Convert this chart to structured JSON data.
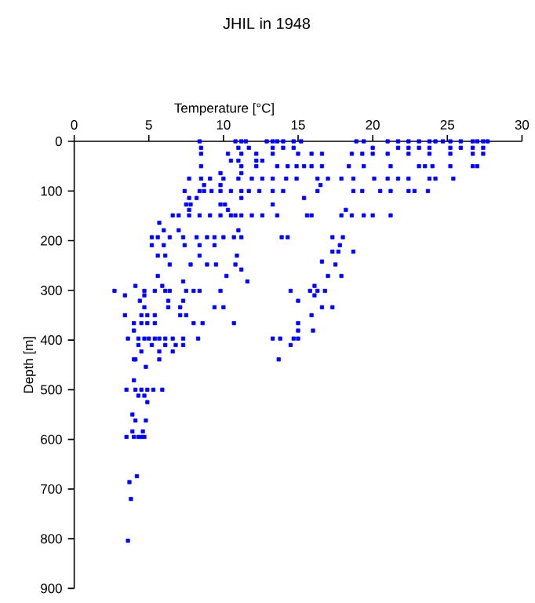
{
  "chart_data": {
    "type": "scatter",
    "title": "JHIL in 1948",
    "xlabel": "Temperature [°C]",
    "ylabel": "Depth [m]",
    "xlim": [
      0,
      30
    ],
    "xticks": [
      0,
      5,
      10,
      15,
      20,
      25,
      30
    ],
    "ylim": [
      900,
      0
    ],
    "yticks": [
      0,
      100,
      200,
      300,
      400,
      500,
      600,
      700,
      800,
      900
    ],
    "marker": "square",
    "series": [
      {
        "color": "#0000ff",
        "x": [
          8.4,
          10.8,
          11.2,
          11.5,
          12.9,
          13.3,
          13.6,
          14.0,
          14.7,
          15.2,
          18.9,
          19.4,
          21.0,
          21.7,
          22.4,
          23.1,
          23.8,
          24.2,
          24.7,
          25.2,
          25.9,
          26.7,
          27.0,
          27.4,
          27.7,
          8.5,
          11.0,
          11.7,
          13.3,
          14.0,
          14.7,
          20.0,
          21.7,
          22.4,
          23.1,
          23.8,
          25.2,
          25.9,
          26.7,
          27.4,
          8.5,
          10.3,
          11.2,
          12.2,
          13.3,
          15.0,
          15.9,
          16.6,
          18.6,
          19.3,
          20.0,
          21.0,
          22.4,
          23.8,
          25.2,
          26.7,
          27.4,
          10.5,
          11.0,
          12.2,
          12.6,
          8.5,
          11.2,
          12.2,
          13.6,
          14.3,
          14.9,
          15.4,
          15.9,
          16.6,
          18.4,
          19.4,
          21.2,
          23.1,
          23.5,
          24.0,
          25.2,
          26.7,
          27.0,
          9.8,
          11.2,
          7.7,
          8.5,
          9.1,
          10.0,
          11.0,
          11.9,
          12.6,
          13.3,
          14.2,
          14.9,
          16.3,
          17.0,
          17.9,
          18.7,
          20.1,
          21.0,
          21.7,
          22.4,
          23.8,
          24.2,
          25.4,
          8.7,
          9.8,
          16.5,
          7.4,
          8.4,
          8.7,
          9.2,
          9.8,
          10.5,
          11.2,
          11.7,
          12.4,
          13.3,
          14.0,
          16.3,
          18.7,
          19.3,
          20.5,
          21.2,
          22.4,
          22.8,
          23.7,
          7.7,
          8.2,
          11.2,
          15.4,
          7.5,
          7.8,
          9.8,
          10.1,
          13.3,
          7.7,
          10.3,
          18.2,
          6.6,
          7.0,
          7.7,
          8.4,
          9.1,
          9.8,
          10.5,
          10.8,
          11.2,
          11.9,
          12.6,
          13.6,
          15.6,
          15.9,
          17.9,
          18.6,
          19.4,
          20.0,
          21.2,
          5.7,
          6.0,
          7.0,
          11.0,
          5.2,
          5.6,
          6.4,
          7.3,
          8.2,
          8.9,
          9.4,
          10.0,
          10.7,
          11.2,
          13.9,
          14.3,
          17.3,
          18.0,
          5.2,
          6.0,
          7.4,
          8.4,
          9.4,
          17.8,
          17.3,
          17.7,
          18.7,
          5.6,
          6.1,
          8.4,
          10.9,
          16.6,
          6.4,
          7.8,
          8.9,
          9.5,
          10.8,
          17.5,
          11.2,
          5.6,
          10.2,
          17.0,
          17.9,
          7.3,
          11.6,
          4.1,
          5.9,
          16.1,
          2.7,
          4.7,
          5.4,
          6.1,
          6.4,
          7.5,
          8.0,
          8.4,
          9.8,
          14.5,
          15.8,
          16.3,
          16.8,
          3.4,
          4.7,
          16.1,
          4.4,
          6.3,
          7.3,
          15.0,
          4.7,
          6.3,
          7.1,
          9.4,
          10.0,
          16.6,
          17.3,
          3.4,
          4.5,
          4.9,
          5.4,
          7.1,
          7.5,
          15.9,
          4.0,
          4.5,
          4.9,
          5.4,
          8.0,
          8.6,
          10.7,
          15.0,
          4.0,
          15.0,
          16.0,
          3.6,
          4.3,
          4.7,
          5.0,
          5.4,
          5.7,
          6.1,
          6.6,
          7.3,
          8.3,
          13.3,
          13.8,
          14.7,
          15.0,
          4.3,
          5.2,
          6.1,
          6.8,
          7.3,
          14.5,
          4.5,
          5.7,
          6.6,
          4.0,
          4.1,
          5.7,
          13.7,
          4.8,
          4.0,
          3.5,
          4.1,
          4.5,
          4.9,
          5.3,
          5.9,
          4.3,
          4.7,
          4.9,
          3.9,
          4.1,
          4.8,
          3.9,
          4.6,
          3.5,
          4.0,
          4.3,
          4.5,
          4.7,
          4.2,
          3.7,
          3.8,
          3.6
        ],
        "values": [
          0,
          0,
          0,
          0,
          0,
          0,
          0,
          0,
          0,
          0,
          0,
          0,
          0,
          0,
          0,
          0,
          0,
          0,
          0,
          0,
          0,
          0,
          0,
          0,
          0,
          13,
          13,
          13,
          13,
          13,
          13,
          13,
          13,
          13,
          13,
          13,
          13,
          13,
          13,
          13,
          25,
          25,
          25,
          25,
          25,
          25,
          25,
          25,
          25,
          25,
          25,
          25,
          25,
          25,
          25,
          25,
          25,
          39,
          39,
          39,
          39,
          50,
          50,
          50,
          50,
          50,
          50,
          50,
          50,
          50,
          50,
          50,
          50,
          50,
          50,
          50,
          50,
          50,
          50,
          64,
          64,
          75,
          75,
          75,
          75,
          75,
          75,
          75,
          75,
          75,
          75,
          75,
          75,
          75,
          75,
          75,
          75,
          75,
          75,
          75,
          75,
          75,
          88,
          88,
          88,
          100,
          100,
          100,
          100,
          100,
          100,
          100,
          100,
          100,
          100,
          100,
          100,
          100,
          100,
          100,
          100,
          100,
          100,
          100,
          114,
          114,
          114,
          114,
          127,
          127,
          127,
          127,
          127,
          138,
          138,
          138,
          149,
          149,
          149,
          149,
          149,
          149,
          149,
          149,
          149,
          149,
          149,
          149,
          149,
          149,
          149,
          149,
          149,
          149,
          149,
          164,
          179,
          179,
          179,
          193,
          193,
          193,
          193,
          193,
          193,
          193,
          193,
          193,
          193,
          193,
          193,
          193,
          193,
          209,
          209,
          209,
          209,
          209,
          209,
          222,
          222,
          222,
          230,
          230,
          230,
          230,
          242,
          248,
          248,
          248,
          248,
          248,
          248,
          258,
          271,
          271,
          271,
          271,
          282,
          282,
          291,
          291,
          291,
          301,
          301,
          301,
          301,
          301,
          301,
          301,
          301,
          301,
          301,
          301,
          301,
          301,
          310,
          310,
          310,
          321,
          321,
          321,
          321,
          334,
          334,
          334,
          334,
          334,
          334,
          334,
          350,
          350,
          350,
          350,
          350,
          350,
          350,
          366,
          366,
          366,
          366,
          366,
          366,
          366,
          366,
          381,
          381,
          381,
          397,
          397,
          397,
          397,
          397,
          397,
          397,
          397,
          397,
          397,
          397,
          397,
          397,
          397,
          410,
          410,
          410,
          410,
          410,
          410,
          423,
          423,
          423,
          439,
          439,
          439,
          439,
          454,
          481,
          500,
          500,
          500,
          500,
          500,
          500,
          512,
          512,
          525,
          550,
          562,
          562,
          584,
          584,
          595,
          595,
          595,
          595,
          595,
          674,
          686,
          720,
          804
        ]
      }
    ]
  }
}
